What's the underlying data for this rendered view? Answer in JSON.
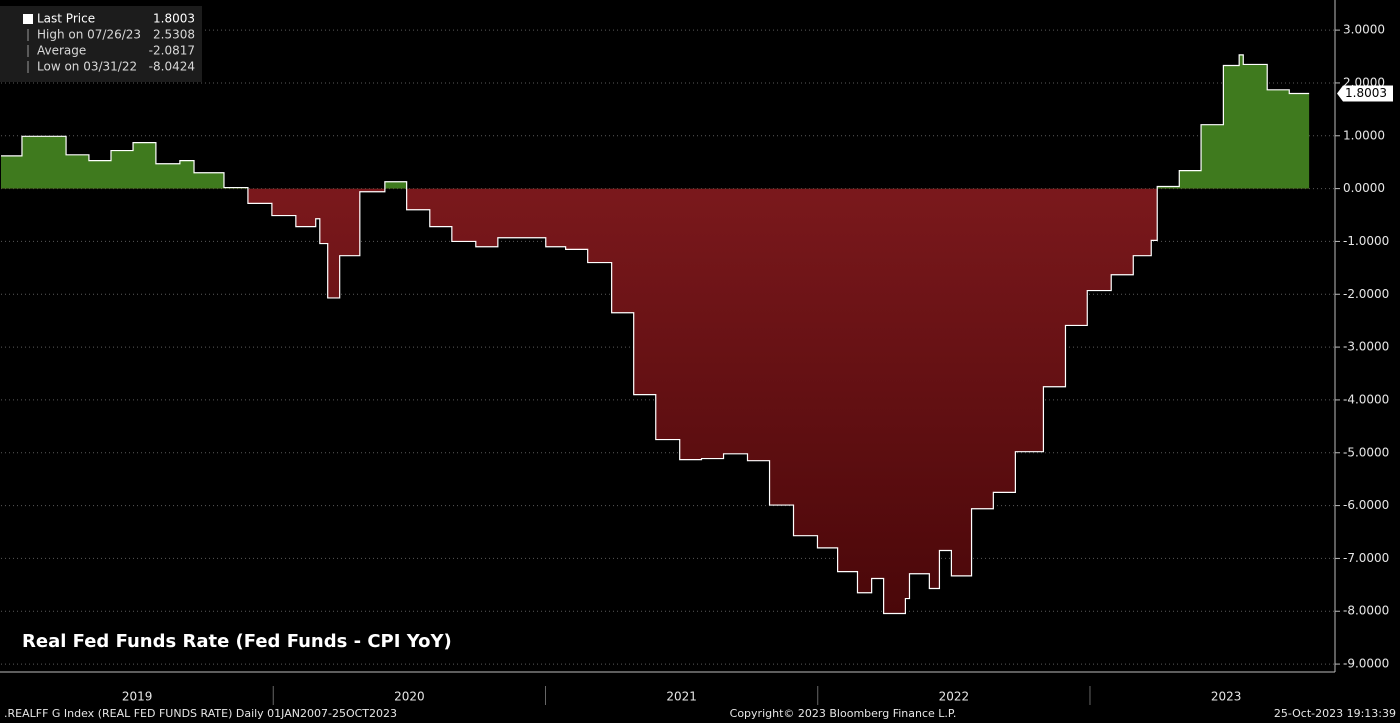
{
  "chart_data": {
    "type": "step-area",
    "title": "Real Fed Funds Rate (Fed Funds - CPI YoY)",
    "x": [
      2019.0,
      2019.077,
      2019.239,
      2019.323,
      2019.404,
      2019.485,
      2019.569,
      2019.657,
      2019.709,
      2019.819,
      2019.907,
      2019.995,
      2020.083,
      2020.156,
      2020.171,
      2020.2,
      2020.244,
      2020.318,
      2020.41,
      2020.49,
      2020.575,
      2020.656,
      2020.744,
      2020.825,
      2021.001,
      2021.074,
      2021.155,
      2021.243,
      2021.324,
      2021.405,
      2021.493,
      2021.573,
      2021.654,
      2021.742,
      2021.823,
      2021.911,
      2021.999,
      2022.073,
      2022.146,
      2022.198,
      2022.242,
      2022.322,
      2022.337,
      2022.41,
      2022.447,
      2022.491,
      2022.565,
      2022.645,
      2022.726,
      2022.829,
      2022.91,
      2022.99,
      2023.078,
      2023.159,
      2023.225,
      2023.247,
      2023.328,
      2023.408,
      2023.49,
      2023.548,
      2023.563,
      2023.651,
      2023.732,
      2023.805
    ],
    "values": [
      0.62,
      0.99,
      0.64,
      0.53,
      0.72,
      0.87,
      0.47,
      0.53,
      0.3,
      0.02,
      -0.28,
      -0.51,
      -0.72,
      -0.57,
      -1.04,
      -2.07,
      -1.27,
      -0.06,
      0.13,
      -0.4,
      -0.72,
      -1.0,
      -1.1,
      -0.93,
      -1.1,
      -1.15,
      -1.4,
      -2.35,
      -3.9,
      -4.75,
      -5.13,
      -5.11,
      -5.02,
      -5.15,
      -5.99,
      -6.57,
      -6.8,
      -7.25,
      -7.65,
      -7.38,
      -8.0424,
      -7.76,
      -7.29,
      -7.57,
      -6.85,
      -7.33,
      -6.06,
      -5.75,
      -4.98,
      -3.75,
      -2.59,
      -1.93,
      -1.63,
      -1.27,
      -0.98,
      0.04,
      0.34,
      1.21,
      2.33,
      2.5308,
      2.35,
      1.87,
      1.8003,
      1.8003
    ],
    "line_color": "#ffffff",
    "positive_color": "#3f7a1e",
    "negative_color": "#8a1e22",
    "xlim": [
      2019,
      2023.9
    ],
    "xticks": [
      2019,
      2020,
      2021,
      2022,
      2023
    ],
    "ylim": [
      -9.15,
      3.57
    ],
    "yticks": [
      {
        "value": 3,
        "label": "3.0000"
      },
      {
        "value": 2,
        "label": "2.0000"
      },
      {
        "value": 1,
        "label": "1.0000"
      },
      {
        "value": 0,
        "label": "0.0000"
      },
      {
        "value": -1,
        "label": "-1.0000"
      },
      {
        "value": -2,
        "label": "-2.0000"
      },
      {
        "value": -3,
        "label": "-3.0000"
      },
      {
        "value": -4,
        "label": "-4.0000"
      },
      {
        "value": -5,
        "label": "-5.0000"
      },
      {
        "value": -6,
        "label": "-6.0000"
      },
      {
        "value": -7,
        "label": "-7.0000"
      },
      {
        "value": -8,
        "label": "-8.0000"
      },
      {
        "value": -9,
        "label": "-9.0000"
      }
    ],
    "grid": true,
    "stats": [
      {
        "label": "Last Price",
        "value": 1.8003
      },
      {
        "label": "High on 07/26/23",
        "value": 2.5308
      },
      {
        "label": "Average",
        "value": -2.0817
      },
      {
        "label": "Low on 03/31/22",
        "value": -8.0424
      }
    ]
  },
  "footer": {
    "left": ".REALFF G Index (REAL FED FUNDS RATE)  Daily 01JAN2007-25OCT2023",
    "center": "Copyright© 2023 Bloomberg Finance L.P.",
    "right": "25-Oct-2023 19:13:39"
  }
}
